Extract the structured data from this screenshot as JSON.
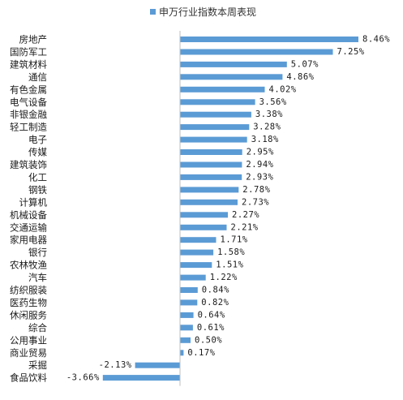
{
  "chart_data": {
    "type": "bar",
    "orientation": "horizontal",
    "title": "",
    "legend": {
      "label": "申万行业指数本周表现",
      "position": "top"
    },
    "categories": [
      "房地产",
      "国防军工",
      "建筑材料",
      "通信",
      "有色金属",
      "电气设备",
      "非银金融",
      "轻工制造",
      "电子",
      "传媒",
      "建筑装饰",
      "化工",
      "钢铁",
      "计算机",
      "机械设备",
      "交通运输",
      "家用电器",
      "银行",
      "农林牧渔",
      "汽车",
      "纺织服装",
      "医药生物",
      "休闲服务",
      "综合",
      "公用事业",
      "商业贸易",
      "采掘",
      "食品饮料"
    ],
    "values": [
      8.46,
      7.25,
      5.07,
      4.86,
      4.02,
      3.56,
      3.38,
      3.28,
      3.18,
      2.95,
      2.94,
      2.93,
      2.78,
      2.73,
      2.27,
      2.21,
      1.71,
      1.58,
      1.51,
      1.22,
      0.84,
      0.82,
      0.64,
      0.61,
      0.5,
      0.17,
      -2.13,
      -3.66
    ],
    "value_labels": [
      "8.46%",
      "7.25%",
      "5.07%",
      "4.86%",
      "4.02%",
      "3.56%",
      "3.38%",
      "3.28%",
      "3.18%",
      "2.95%",
      "2.94%",
      "2.93%",
      "2.78%",
      "2.73%",
      "2.27%",
      "2.21%",
      "1.71%",
      "1.58%",
      "1.51%",
      "1.22%",
      "0.84%",
      "0.82%",
      "0.64%",
      "0.61%",
      "0.50%",
      "0.17%",
      "-2.13%",
      "-3.66%"
    ],
    "unit": "%",
    "bar_color": "#5b9bd5",
    "axis_color": "#bfbfbf"
  }
}
